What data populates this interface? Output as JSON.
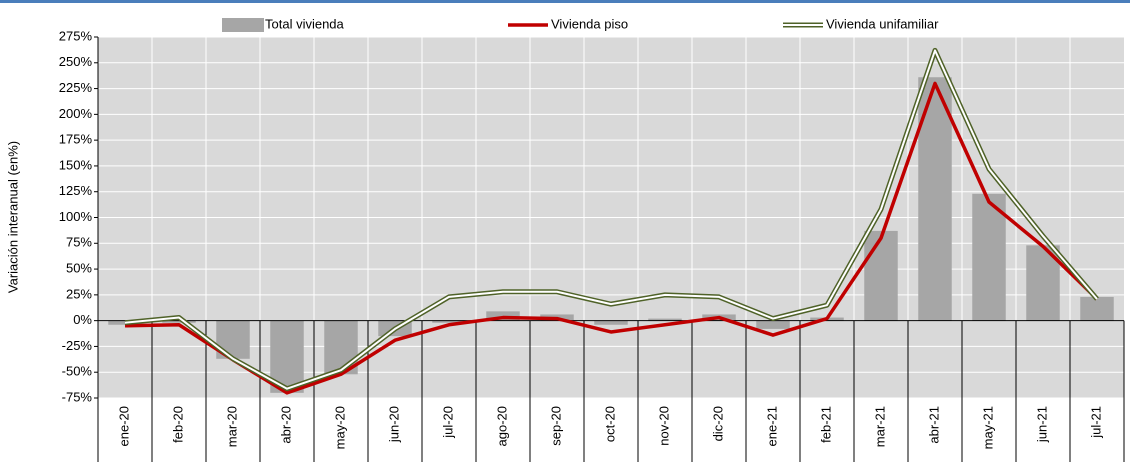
{
  "chart_data": {
    "type": "bar_line",
    "y_axis_label": "Variación interanual (en%)",
    "categories": [
      "ene-20",
      "feb-20",
      "mar-20",
      "abr-20",
      "may-20",
      "jun-20",
      "jul-20",
      "ago-20",
      "sep-20",
      "oct-20",
      "nov-20",
      "dic-20",
      "ene-21",
      "feb-21",
      "mar-21",
      "abr-21",
      "may-21",
      "jun-21",
      "jul-21"
    ],
    "series": [
      {
        "name": "Total vivienda",
        "kind": "bar",
        "color": "#a6a6a6",
        "values": [
          -4,
          -2,
          -37,
          -70,
          -52,
          -15,
          -2,
          9,
          6,
          -4,
          2,
          6,
          -8,
          3,
          87,
          236,
          123,
          73,
          23
        ]
      },
      {
        "name": "Vivienda piso",
        "kind": "line",
        "color": "#c00000",
        "values": [
          -5,
          -4,
          -38,
          -70,
          -52,
          -19,
          -4,
          3,
          2,
          -11,
          -4,
          3,
          -14,
          2,
          80,
          230,
          115,
          72,
          21
        ]
      },
      {
        "name": "Vivienda unifamiliar",
        "kind": "double-line",
        "color": "#4f6228",
        "values": [
          -2,
          3,
          -37,
          -66,
          -48,
          -8,
          23,
          28,
          28,
          16,
          25,
          23,
          2,
          15,
          108,
          262,
          147,
          82,
          21
        ]
      }
    ],
    "ylim": [
      -75,
      275
    ],
    "yticks": [
      {
        "value": -75,
        "label": "-75%"
      },
      {
        "value": -50,
        "label": "-50%"
      },
      {
        "value": -25,
        "label": "-25%"
      },
      {
        "value": 0,
        "label": "0%"
      },
      {
        "value": 25,
        "label": "25%"
      },
      {
        "value": 50,
        "label": "50%"
      },
      {
        "value": 75,
        "label": "75%"
      },
      {
        "value": 100,
        "label": "100%"
      },
      {
        "value": 125,
        "label": "125%"
      },
      {
        "value": 150,
        "label": "150%"
      },
      {
        "value": 175,
        "label": "175%"
      },
      {
        "value": 200,
        "label": "200%"
      },
      {
        "value": 225,
        "label": "225%"
      },
      {
        "value": 250,
        "label": "250%"
      },
      {
        "value": 275,
        "label": "275%"
      }
    ],
    "grid": true,
    "legend": "top"
  }
}
